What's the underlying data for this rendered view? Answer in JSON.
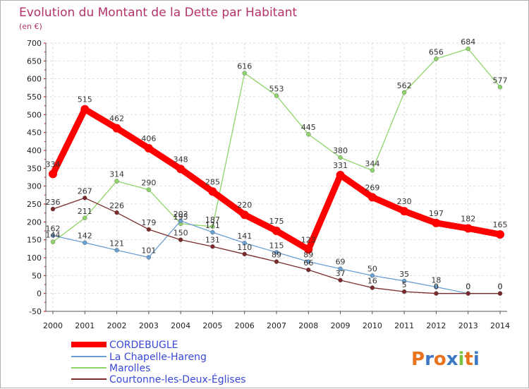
{
  "chart_data": {
    "type": "line",
    "title": "Evolution du Montant de la Dette par Habitant",
    "subtitle": "(en €)",
    "x": [
      "2000",
      "2001",
      "2002",
      "2003",
      "2004",
      "2005",
      "2006",
      "2007",
      "2008",
      "2009",
      "2010",
      "2011",
      "2012",
      "2013",
      "2014"
    ],
    "ylim": [
      -50,
      700
    ],
    "yticks": [
      -50,
      0,
      50,
      100,
      150,
      200,
      250,
      300,
      350,
      400,
      450,
      500,
      550,
      600,
      650,
      700
    ],
    "grid": true,
    "legend_position": "bottom-left",
    "series": [
      {
        "name": "CORDEBUGLE",
        "color": "#ff0000",
        "values": [
          334,
          515,
          462,
          406,
          348,
          285,
          220,
          175,
          123,
          331,
          269,
          230,
          197,
          182,
          165
        ]
      },
      {
        "name": "La Chapelle-Hareng",
        "color": "#6a9fd2",
        "values": [
          162,
          142,
          121,
          101,
          203,
          171,
          141,
          115,
          89,
          69,
          50,
          35,
          18,
          0,
          0
        ]
      },
      {
        "name": "Marolles",
        "color": "#8fd46a",
        "values": [
          144,
          211,
          314,
          290,
          195,
          187,
          616,
          553,
          445,
          380,
          344,
          562,
          656,
          684,
          577
        ]
      },
      {
        "name": "Courtonne-les-Deux-Églises",
        "color": "#7a2a2a",
        "values": [
          236,
          267,
          226,
          179,
          150,
          131,
          110,
          89,
          66,
          37,
          16,
          5,
          0,
          0,
          0
        ]
      }
    ]
  },
  "logo": {
    "text": "Proxiti"
  }
}
